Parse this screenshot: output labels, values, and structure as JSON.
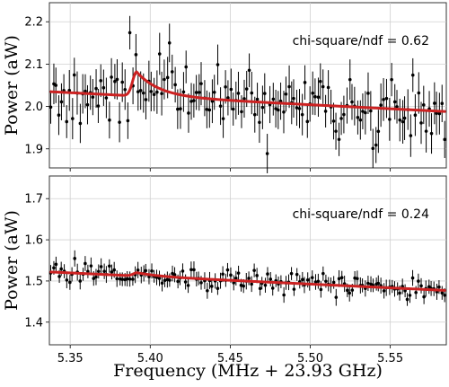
{
  "chart_data": [
    {
      "type": "scatter",
      "panel": "top",
      "annotation": "chi-square/ndf = 0.62",
      "ylabel": "Power (aW)",
      "xlim": [
        5.337,
        5.585
      ],
      "ylim": [
        1.855,
        2.245
      ],
      "yticks": [
        "1.9",
        "2.0",
        "2.1",
        "2.2"
      ],
      "ytick_values": [
        1.9,
        2.0,
        2.1,
        2.2
      ],
      "xticks": [
        5.35,
        5.4,
        5.45,
        5.5,
        5.55
      ],
      "grid": true,
      "baseline": {
        "y_start": 2.035,
        "y_end": 1.988
      },
      "peak": {
        "x_center": 5.3915,
        "amplitude": 0.057
      },
      "fit_name": "fit",
      "error_bar": 0.045,
      "noise": 0.038,
      "x_range": [
        5.338,
        5.584
      ],
      "n_points": 150
    },
    {
      "type": "scatter",
      "panel": "bottom",
      "annotation": "chi-square/ndf = 0.24",
      "ylabel": "Power (aW)",
      "xlabel": "Frequency (MHz + 23.93 GHz)",
      "xlim": [
        5.337,
        5.585
      ],
      "ylim": [
        1.345,
        1.755
      ],
      "yticks": [
        "1.4",
        "1.5",
        "1.6",
        "1.7"
      ],
      "ytick_values": [
        1.4,
        1.5,
        1.6,
        1.7
      ],
      "xticks": [
        "5.35",
        "5.40",
        "5.45",
        "5.50",
        "5.55"
      ],
      "xtick_values": [
        5.35,
        5.4,
        5.45,
        5.5,
        5.55
      ],
      "grid": true,
      "baseline": {
        "y_start": 1.522,
        "y_end": 1.477
      },
      "peak": {
        "x_center": 5.392,
        "amplitude": 0.008
      },
      "error_bar": 0.018,
      "noise": 0.012,
      "x_range": [
        5.338,
        5.584
      ],
      "n_points": 150
    }
  ]
}
